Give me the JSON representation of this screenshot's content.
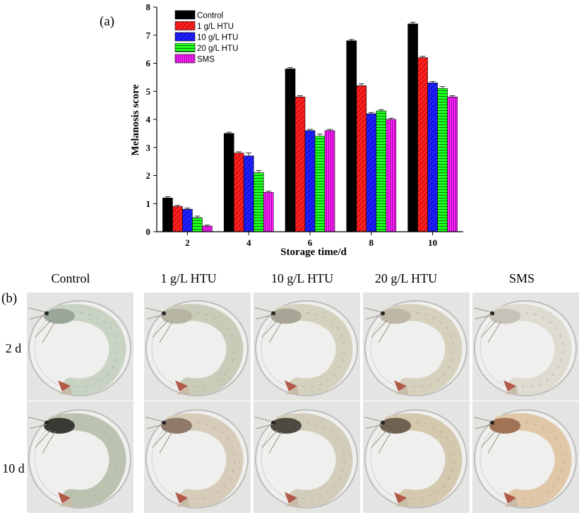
{
  "panel_a_label": "(a)",
  "panel_b_label": "(b)",
  "chart_data": {
    "type": "bar",
    "title": "",
    "xlabel": "Storage time/d",
    "ylabel": "Melanosis score",
    "categories": [
      "2",
      "4",
      "6",
      "8",
      "10"
    ],
    "ylim": [
      0,
      8
    ],
    "yticks": [
      "0",
      "1",
      "2",
      "3",
      "4",
      "5",
      "6",
      "7",
      "8"
    ],
    "legend_position": "top-left",
    "grid": false,
    "series": [
      {
        "name": "Control",
        "values": [
          1.2,
          3.5,
          5.8,
          6.8,
          7.4
        ],
        "errors": [
          0.02,
          0.02,
          0.02,
          0.02,
          0.03
        ],
        "color": "#000000",
        "pattern": "solid"
      },
      {
        "name": "1 g/L HTU",
        "values": [
          0.9,
          2.8,
          4.8,
          5.2,
          6.2
        ],
        "errors": [
          0.02,
          0.02,
          0.02,
          0.04,
          0.02
        ],
        "color": "#ff1f1f",
        "pattern": "diagonal"
      },
      {
        "name": "10 g/L HTU",
        "values": [
          0.8,
          2.7,
          3.6,
          4.2,
          5.3
        ],
        "errors": [
          0.02,
          0.08,
          0.02,
          0.02,
          0.02
        ],
        "color": "#1f1fff",
        "pattern": "diagonal"
      },
      {
        "name": "20 g/L HTU",
        "values": [
          0.5,
          2.1,
          3.4,
          4.3,
          5.1
        ],
        "errors": [
          0.03,
          0.05,
          0.05,
          0.02,
          0.04
        ],
        "color": "#22ff22",
        "pattern": "horizontal"
      },
      {
        "name": "SMS",
        "values": [
          0.2,
          1.4,
          3.6,
          4.0,
          4.8
        ],
        "errors": [
          0.01,
          0.02,
          0.02,
          0.02,
          0.02
        ],
        "color": "#ff22ff",
        "pattern": "vertical"
      }
    ]
  },
  "photo_grid": {
    "columns": [
      "Control",
      "1 g/L HTU",
      "10 g/L HTU",
      "20 g/L HTU",
      "SMS"
    ],
    "rows": [
      "2 d",
      "10 d"
    ]
  }
}
